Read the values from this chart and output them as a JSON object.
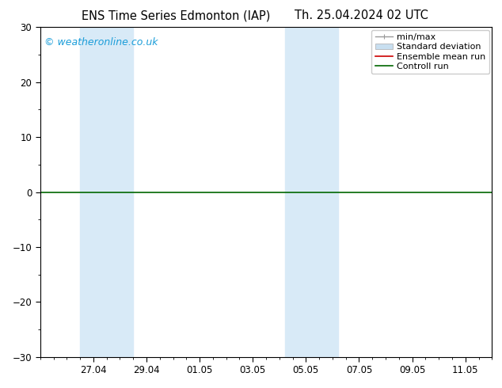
{
  "title_left": "ENS Time Series Edmonton (IAP)",
  "title_right": "Th. 25.04.2024 02 UTC",
  "watermark": "© weatheronline.co.uk",
  "ylim": [
    -30,
    30
  ],
  "yticks": [
    -30,
    -20,
    -10,
    0,
    10,
    20,
    30
  ],
  "xtick_labels": [
    "27.04",
    "29.04",
    "01.05",
    "03.05",
    "05.05",
    "07.05",
    "09.05",
    "11.05"
  ],
  "xtick_positions": [
    2,
    4,
    6,
    8,
    10,
    12,
    14,
    16
  ],
  "x_min": 0,
  "x_max": 17,
  "shaded_regions": [
    {
      "x_start": 1.5,
      "x_end": 3.5,
      "color": "#d8eaf7"
    },
    {
      "x_start": 9.2,
      "x_end": 11.2,
      "color": "#d8eaf7"
    }
  ],
  "hline_y": 0,
  "hline_color": "#006600",
  "background_color": "#ffffff",
  "plot_bg_color": "#ffffff",
  "legend_items": [
    {
      "label": "min/max",
      "color": "#999999",
      "style": "minmax"
    },
    {
      "label": "Standard deviation",
      "color": "#c8dff0",
      "style": "box"
    },
    {
      "label": "Ensemble mean run",
      "color": "#cc0000",
      "style": "line"
    },
    {
      "label": "Controll run",
      "color": "#006600",
      "style": "line"
    }
  ],
  "border_color": "#000000",
  "tick_color": "#000000",
  "watermark_color": "#1a9dd9",
  "title_fontsize": 10.5,
  "axis_fontsize": 8.5,
  "watermark_fontsize": 9,
  "legend_fontsize": 8
}
